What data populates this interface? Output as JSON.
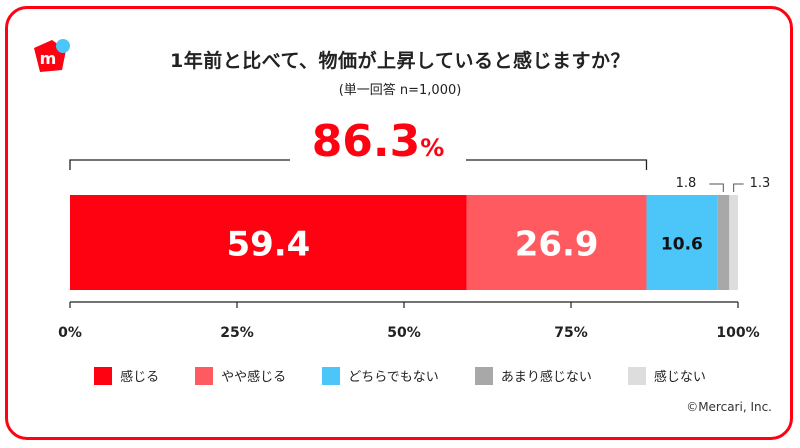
{
  "title": "1年前と比べて、物価が上昇していると感じますか？",
  "subtitle": "(単一回答 n=1,000)",
  "total": {
    "value": "86.3",
    "unit": "%"
  },
  "copyright": "©Mercari, Inc.",
  "colors": {
    "accent": "#ff0211"
  },
  "chart_data": {
    "type": "bar",
    "orientation": "horizontal-stacked",
    "xlim": [
      0,
      100
    ],
    "x_ticks": [
      "0%",
      "25%",
      "50%",
      "75%",
      "100%"
    ],
    "series": [
      {
        "name": "感じる",
        "value": 59.4,
        "label": "59.4",
        "color": "#ff0211"
      },
      {
        "name": "やや感じる",
        "value": 26.9,
        "label": "26.9",
        "color": "#ff5a60"
      },
      {
        "name": "どちらでもない",
        "value": 10.6,
        "label": "10.6",
        "color": "#4cc6f8"
      },
      {
        "name": "あまり感じない",
        "value": 1.8,
        "label": "1.8",
        "color": "#a8a8a8"
      },
      {
        "name": "感じない",
        "value": 1.3,
        "label": "1.3",
        "color": "#dddddd"
      }
    ],
    "bracket": {
      "from": 0,
      "to": 86.3,
      "label": "86.3%"
    }
  }
}
